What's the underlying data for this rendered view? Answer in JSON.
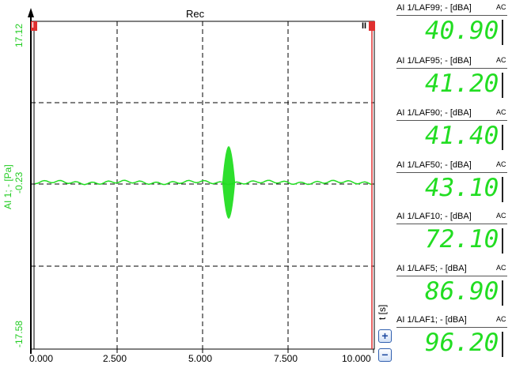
{
  "plot": {
    "title": "Rec",
    "y_axis_label": "AI 1; - [Pa]",
    "y_max_label": "17.12",
    "y_mid_label": "-0.23",
    "y_min_label": "-17.58",
    "x_axis_label": "t [s]",
    "x_ticks": [
      "0.000",
      "2.500",
      "5.000",
      "7.500",
      "10.000"
    ],
    "signal_color": "#22dd22",
    "cursor_color": "#e03030",
    "zoom_in_label": "+",
    "zoom_out_label": "−",
    "cursor_left_label": "I",
    "cursor_right_label": "II"
  },
  "meters": [
    {
      "label": "AI 1/LAF99; - [dBA]",
      "suffix": "AC",
      "value": "40.90"
    },
    {
      "label": "AI 1/LAF95; - [dBA]",
      "suffix": "AC",
      "value": "41.20"
    },
    {
      "label": "AI 1/LAF90; - [dBA]",
      "suffix": "AC",
      "value": "41.40"
    },
    {
      "label": "AI 1/LAF50; - [dBA]",
      "suffix": "AC",
      "value": "43.10"
    },
    {
      "label": "AI 1/LAF10; - [dBA]",
      "suffix": "AC",
      "value": "72.10"
    },
    {
      "label": "AI 1/LAF5; - [dBA]",
      "suffix": "AC",
      "value": "86.90"
    },
    {
      "label": "AI 1/LAF1; - [dBA]",
      "suffix": "AC",
      "value": "96.20"
    }
  ]
}
